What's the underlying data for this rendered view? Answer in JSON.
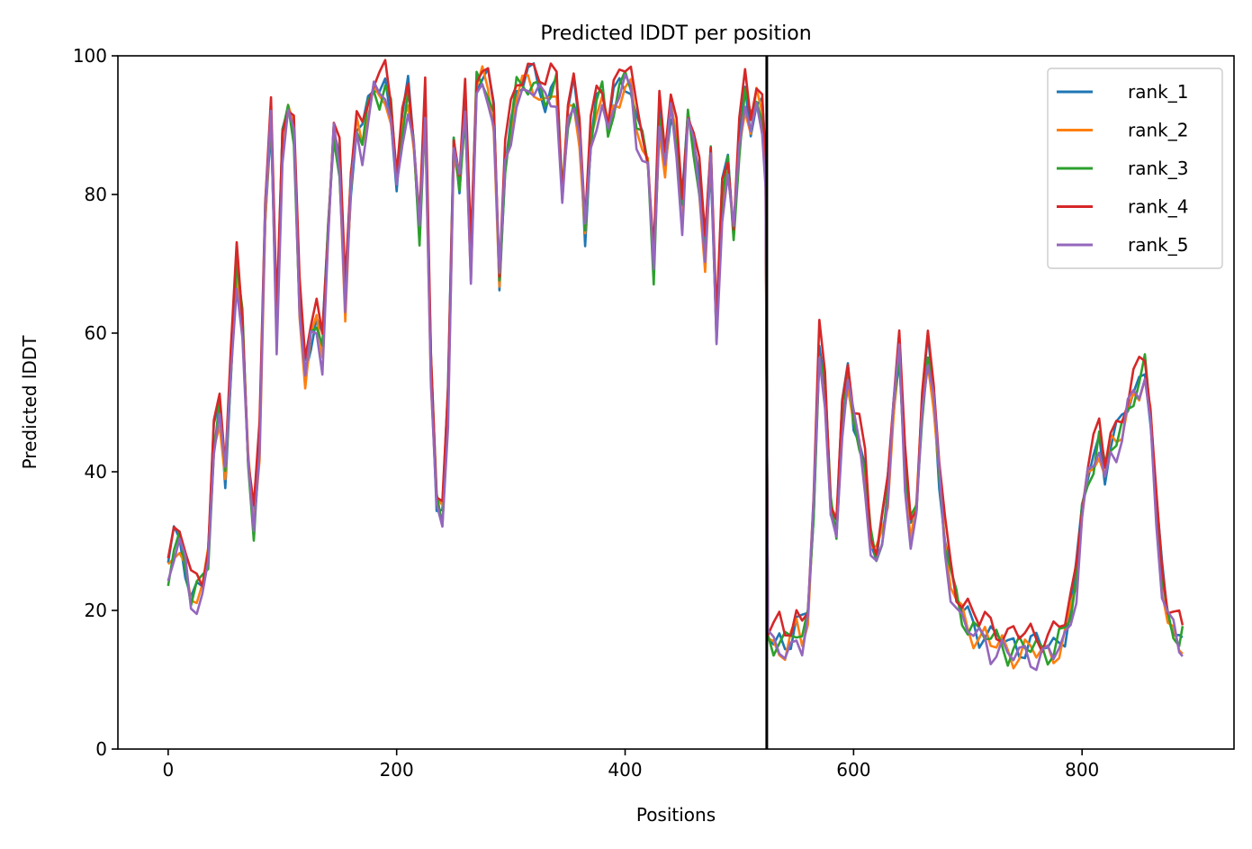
{
  "chart_data": {
    "type": "line",
    "title": "Predicted lDDT per position",
    "xlabel": "Positions",
    "ylabel": "Predicted lDDT",
    "xlim": [
      -44,
      933
    ],
    "ylim": [
      0,
      100
    ],
    "xticks": [
      0,
      200,
      400,
      600,
      800
    ],
    "yticks": [
      0,
      20,
      40,
      60,
      80,
      100
    ],
    "grid": false,
    "legend_position": "top-right",
    "divider_x": 524,
    "divider_color": "#000000",
    "series": [
      {
        "name": "rank_1",
        "color": "#1f77b4",
        "offset": 0
      },
      {
        "name": "rank_2",
        "color": "#ff7f0e",
        "offset": -1
      },
      {
        "name": "rank_3",
        "color": "#2ca02c",
        "offset": -0.5
      },
      {
        "name": "rank_4",
        "color": "#d62728",
        "offset": 1.5
      },
      {
        "name": "rank_5",
        "color": "#9467bd",
        "offset": -1.5
      }
    ],
    "x": [
      0,
      5,
      10,
      15,
      20,
      25,
      30,
      35,
      40,
      45,
      50,
      55,
      60,
      65,
      70,
      75,
      80,
      85,
      90,
      95,
      100,
      105,
      110,
      115,
      120,
      125,
      130,
      135,
      140,
      145,
      150,
      155,
      160,
      165,
      170,
      175,
      180,
      185,
      190,
      195,
      200,
      205,
      210,
      215,
      220,
      225,
      230,
      235,
      240,
      245,
      250,
      255,
      260,
      265,
      270,
      275,
      280,
      285,
      290,
      295,
      300,
      305,
      310,
      315,
      320,
      325,
      330,
      335,
      340,
      345,
      350,
      355,
      360,
      365,
      370,
      375,
      380,
      385,
      390,
      395,
      400,
      405,
      410,
      415,
      420,
      425,
      430,
      435,
      440,
      445,
      450,
      455,
      460,
      465,
      470,
      475,
      480,
      485,
      490,
      495,
      500,
      505,
      510,
      515,
      520,
      523,
      525,
      530,
      535,
      540,
      545,
      550,
      555,
      560,
      565,
      570,
      575,
      580,
      585,
      590,
      595,
      600,
      605,
      610,
      615,
      620,
      625,
      630,
      635,
      640,
      645,
      650,
      655,
      660,
      665,
      670,
      675,
      680,
      685,
      690,
      695,
      700,
      705,
      710,
      715,
      720,
      725,
      730,
      735,
      740,
      745,
      750,
      755,
      760,
      765,
      770,
      775,
      780,
      785,
      790,
      795,
      800,
      805,
      810,
      815,
      820,
      825,
      830,
      835,
      840,
      845,
      850,
      855,
      860,
      865,
      870,
      875,
      880,
      885,
      888
    ],
    "y": [
      26,
      30,
      31,
      27,
      22,
      23,
      24,
      28,
      45,
      50,
      40,
      55,
      70,
      62,
      42,
      33,
      45,
      78,
      92,
      60,
      88,
      93,
      90,
      65,
      55,
      60,
      62,
      58,
      75,
      90,
      85,
      65,
      82,
      90,
      88,
      93,
      96,
      95,
      96,
      92,
      82,
      90,
      95,
      88,
      75,
      93,
      55,
      36,
      34,
      50,
      88,
      82,
      93,
      70,
      96,
      97,
      96,
      92,
      68,
      85,
      90,
      95,
      96,
      97,
      97,
      96,
      94,
      95,
      96,
      80,
      92,
      95,
      90,
      75,
      88,
      93,
      95,
      90,
      94,
      96,
      97,
      96,
      90,
      88,
      85,
      70,
      92,
      85,
      93,
      88,
      78,
      92,
      88,
      82,
      72,
      86,
      60,
      80,
      85,
      75,
      88,
      95,
      90,
      94,
      92,
      84,
      17,
      16,
      16,
      15,
      16,
      18,
      17,
      20,
      35,
      58,
      52,
      35,
      32,
      48,
      55,
      48,
      45,
      40,
      30,
      28,
      32,
      38,
      50,
      58,
      40,
      32,
      35,
      50,
      58,
      52,
      40,
      30,
      25,
      22,
      20,
      19,
      18,
      17,
      17,
      16,
      16,
      16,
      15,
      15,
      15,
      15,
      15,
      15,
      15,
      15,
      15,
      16,
      17,
      20,
      25,
      35,
      40,
      42,
      45,
      40,
      44,
      45,
      47,
      50,
      52,
      53,
      55,
      48,
      35,
      25,
      20,
      18,
      16,
      16
    ]
  }
}
